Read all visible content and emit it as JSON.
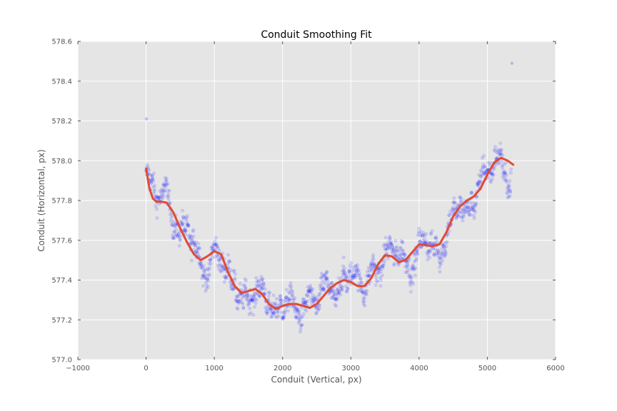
{
  "chart_data": {
    "type": "scatter",
    "title": "Conduit Smoothing Fit",
    "xlabel": "Conduit (Vertical, px)",
    "ylabel": "Conduit (Horizontal, px)",
    "xlim": [
      -1000,
      6000
    ],
    "ylim": [
      577.0,
      578.6
    ],
    "xticks": [
      -1000,
      0,
      1000,
      2000,
      3000,
      4000,
      5000,
      6000
    ],
    "xtick_labels": [
      "−1000",
      "0",
      "1000",
      "2000",
      "3000",
      "4000",
      "5000",
      "6000"
    ],
    "yticks": [
      577.0,
      577.2,
      577.4,
      577.6,
      577.8,
      578.0,
      578.2,
      578.4,
      578.6
    ],
    "ytick_labels": [
      "577.0",
      "577.2",
      "577.4",
      "577.6",
      "577.8",
      "578.0",
      "578.2",
      "578.4",
      "578.6"
    ],
    "grid": true,
    "background": "#e5e5e5",
    "scatter_color": "#0000ff",
    "fit_color": "#e24a33",
    "x_range": [
      0,
      5350
    ],
    "scatter_trend": {
      "x": [
        0,
        100,
        200,
        300,
        400,
        500,
        600,
        700,
        800,
        900,
        1000,
        1100,
        1200,
        1300,
        1400,
        1500,
        1600,
        1700,
        1800,
        1900,
        2000,
        2100,
        2200,
        2300,
        2400,
        2500,
        2600,
        2700,
        2800,
        2900,
        3000,
        3100,
        3200,
        3300,
        3400,
        3500,
        3600,
        3700,
        3800,
        3900,
        4000,
        4100,
        4200,
        4300,
        4400,
        4500,
        4600,
        4700,
        4800,
        4900,
        5000,
        5100,
        5200,
        5300
      ],
      "y": [
        577.92,
        577.86,
        577.82,
        577.84,
        577.7,
        577.62,
        577.68,
        577.58,
        577.48,
        577.42,
        577.55,
        577.52,
        577.42,
        577.38,
        577.3,
        577.3,
        577.35,
        577.34,
        577.3,
        577.22,
        577.28,
        577.32,
        577.22,
        577.26,
        577.3,
        577.3,
        577.36,
        577.38,
        577.3,
        577.42,
        577.44,
        577.4,
        577.36,
        577.44,
        577.45,
        577.52,
        577.56,
        577.55,
        577.48,
        577.46,
        577.56,
        577.62,
        577.56,
        577.52,
        577.62,
        577.72,
        577.8,
        577.72,
        577.8,
        577.9,
        577.95,
        578.0,
        578.0,
        577.9
      ]
    },
    "outlier_points": [
      [
        5360,
        578.49
      ],
      [
        5,
        578.21
      ]
    ],
    "fit_line": {
      "x": [
        0,
        50,
        100,
        150,
        200,
        300,
        400,
        500,
        600,
        700,
        800,
        900,
        1000,
        1100,
        1200,
        1300,
        1400,
        1500,
        1600,
        1700,
        1800,
        1900,
        2000,
        2100,
        2200,
        2300,
        2400,
        2500,
        2600,
        2700,
        2800,
        2900,
        3000,
        3100,
        3200,
        3300,
        3400,
        3500,
        3600,
        3700,
        3800,
        3900,
        4000,
        4100,
        4200,
        4300,
        4400,
        4500,
        4600,
        4700,
        4800,
        4900,
        5000,
        5100,
        5200,
        5300,
        5380
      ],
      "y": [
        577.96,
        577.86,
        577.81,
        577.795,
        577.795,
        577.79,
        577.74,
        577.66,
        577.59,
        577.53,
        577.5,
        577.52,
        577.545,
        577.53,
        577.44,
        577.37,
        577.335,
        577.345,
        577.355,
        577.33,
        577.28,
        577.255,
        577.27,
        577.28,
        577.28,
        577.27,
        577.26,
        577.28,
        577.32,
        577.36,
        577.385,
        577.4,
        577.39,
        577.37,
        577.37,
        577.41,
        577.48,
        577.525,
        577.52,
        577.49,
        577.5,
        577.54,
        577.58,
        577.575,
        577.57,
        577.58,
        577.64,
        577.72,
        577.77,
        577.8,
        577.82,
        577.86,
        577.93,
        577.99,
        578.015,
        578.0,
        577.98
      ]
    }
  }
}
